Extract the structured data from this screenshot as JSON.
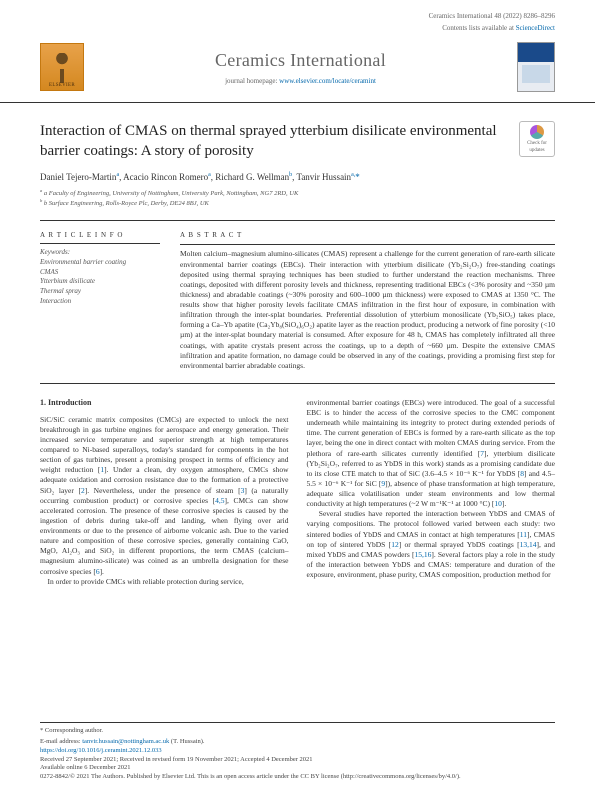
{
  "meta": {
    "citation": "Ceramics International 48 (2022) 8286–8296",
    "contents_line": "Contents lists available at",
    "contents_link": "ScienceDirect"
  },
  "journal": {
    "name": "Ceramics International",
    "homepage_label": "journal homepage:",
    "homepage_url": "www.elsevier.com/locate/ceramint",
    "publisher": "ELSEVIER"
  },
  "badge": {
    "line1": "Check for",
    "line2": "updates"
  },
  "title": "Interaction of CMAS on thermal sprayed ytterbium disilicate environmental barrier coatings: A story of porosity",
  "authors_html": "Daniel Tejero-Martin<sup>a</sup>, Acacio Rincon Romero<sup>a</sup>, Richard G. Wellman<sup>b</sup>, Tanvir Hussain<sup>a,</sup><span class='star'>*</span>",
  "affiliations": [
    "a Faculty of Engineering, University of Nottingham, University Park, Nottingham, NG7 2RD, UK",
    "b Surface Engineering, Rolls-Royce Plc, Derby, DE24 8BJ, UK"
  ],
  "info": {
    "heading": "A R T I C L E  I N F O",
    "kw_label": "Keywords:",
    "keywords": [
      "Environmental barrier coating",
      "CMAS",
      "Ytterbium disilicate",
      "Thermal spray",
      "Interaction"
    ]
  },
  "abstract": {
    "heading": "A B S T R A C T",
    "text": "Molten calcium–magnesium alumino-silicates (CMAS) represent a challenge for the current generation of rare-earth silicate environmental barrier coatings (EBCs). Their interaction with ytterbium disilicate (Yb₂Si₂O₇) free-standing coatings deposited using thermal spraying techniques has been studied to further understand the reaction mechanisms. Three coatings, deposited with different porosity levels and thickness, representing traditional EBCs (<3% porosity and ~350 µm thickness) and abradable coatings (~30% porosity and 600–1000 µm thickness) were exposed to CMAS at 1350 °C. The results show that higher porosity levels facilitate CMAS infiltration in the first hour of exposure, in combination with infiltration through the inter-splat boundaries. Preferential dissolution of ytterbium monosilicate (Yb₂SiO₅) takes place, forming a Ca–Yb apatite (Ca₂Yb₈(SiO₄)₆O₂) apatite layer as the reaction product, producing a network of fine porosity (<10 µm) at the inter-splat boundary material is consumed. After exposure for 48 h, CMAS has completely infiltrated all three coatings, with apatite crystals present across the coatings, up to a depth of ~660 µm. Despite the extensive CMAS infiltration and apatite formation, no damage could be observed in any of the coatings, providing a promising first step for environmental barrier abradable coatings."
  },
  "body": {
    "section_no": "1.",
    "section_title": "Introduction",
    "col1": "SiC/SiC ceramic matrix composites (CMCs) are expected to unlock the next breakthrough in gas turbine engines for aerospace and energy generation. Their increased service temperature and superior strength at high temperatures compared to Ni-based superalloys, today's standard for components in the hot section of gas turbines, present a promising prospect in terms of efficiency and weight reduction [1]. Under a clean, dry oxygen atmosphere, CMCs show adequate oxidation and corrosion resistance due to the formation of a protective SiO₂ layer [2]. Nevertheless, under the presence of steam [3] (a naturally occurring combustion product) or corrosive species [4,5], CMCs can show accelerated corrosion. The presence of these corrosive species is caused by the ingestion of debris during take-off and landing, when flying over arid environments or due to the presence of airborne volcanic ash. Due to the varied nature and composition of these corrosive species, generally containing CaO, MgO, Al₂O₃ and SiO₂ in different proportions, the term CMAS (calcium–magnesium alumino-silicate) was coined as an umbrella designation for these corrosive species [6].\n    In order to provide CMCs with reliable protection during service,",
    "col2": "environmental barrier coatings (EBCs) were introduced. The goal of a successful EBC is to hinder the access of the corrosive species to the CMC component underneath while maintaining its integrity to protect during extended periods of time. The current generation of EBCs is formed by a rare-earth silicate as the top layer, being the one in direct contact with molten CMAS during service. From the plethora of rare-earth silicates currently identified [7], ytterbium disilicate (Yb₂Si₂O₇, referred to as YbDS in this work) stands as a promising candidate due to its close CTE match to that of SiC (3.6–4.5 × 10⁻⁶ K⁻¹ for YbDS [8] and 4.5–5.5 × 10⁻⁶ K⁻¹ for SiC [9]), absence of phase transformation at high temperature, adequate silica volatilisation under steam environments and low thermal conductivity at high temperatures (~2 W m⁻¹K⁻¹ at 1000 °C) [10].\n    Several studies have reported the interaction between YbDS and CMAS of varying compositions. The protocol followed varied between each study: two sintered bodies of YbDS and CMAS in contact at high temperatures [11], CMAS on top of sintered YbDS [12] or thermal sprayed YbDS coatings [13,14], and mixed YbDS and CMAS powders [15,16]. Several factors play a role in the study of the interaction between YbDS and CMAS: temperature and duration of the exposure, environment, phase purity, CMAS composition, production method for"
  },
  "footer": {
    "corr_label": "* Corresponding author.",
    "email_label": "E-mail address:",
    "email": "tanvir.hussain@nottingham.ac.uk",
    "email_who": "(T. Hussain).",
    "doi": "https://doi.org/10.1016/j.ceramint.2021.12.033",
    "history": "Received 27 September 2021; Received in revised form 19 November 2021; Accepted 4 December 2021",
    "available": "Available online 6 December 2021",
    "copyright": "0272-8842/© 2021 The Authors. Published by Elsevier Ltd. This is an open access article under the CC BY license (http://creativecommons.org/licenses/by/4.0/)."
  },
  "colors": {
    "link": "#0066aa",
    "text": "#333333",
    "rule": "#333333",
    "elsevier_orange": "#d48820"
  }
}
